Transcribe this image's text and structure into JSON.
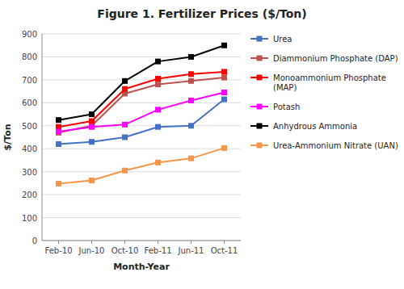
{
  "chart_data": {
    "type": "line",
    "title": "Figure 1. Fertilizer Prices ($/Ton)",
    "x_label": "Month-Year",
    "y_label": "$/Ton",
    "categories": [
      "Feb-10",
      "Jun-10",
      "Oct-10",
      "Feb-11",
      "Jun-11",
      "Oct-11"
    ],
    "series": [
      {
        "name": "Urea",
        "color": "#4472C4",
        "marker": "square",
        "values": [
          420,
          430,
          450,
          495,
          500,
          615
        ]
      },
      {
        "name": "Diammonium Phosphate (DAP)",
        "color": "#C0504D",
        "marker": "square",
        "values": [
          470,
          500,
          640,
          680,
          695,
          710
        ]
      },
      {
        "name": "Monoammonium Phosphate\n(MAP)",
        "color": "#FF0000",
        "marker": "square",
        "values": [
          495,
          520,
          660,
          705,
          725,
          735
        ]
      },
      {
        "name": "Potash",
        "color": "#FF00FF",
        "marker": "square",
        "values": [
          475,
          495,
          505,
          570,
          610,
          645
        ]
      },
      {
        "name": "Anhydrous Ammonia",
        "color": "#000000",
        "marker": "square",
        "values": [
          525,
          550,
          695,
          780,
          800,
          850
        ]
      },
      {
        "name": "Urea-Ammonium Nitrate (UAN)",
        "color": "#F79646",
        "marker": "square",
        "values": [
          248,
          262,
          305,
          340,
          358,
          403
        ]
      }
    ],
    "ylim": [
      0,
      900
    ],
    "yticks": [
      0,
      100,
      200,
      300,
      400,
      500,
      600,
      700,
      800,
      900
    ],
    "grid": true,
    "legend": "right"
  }
}
